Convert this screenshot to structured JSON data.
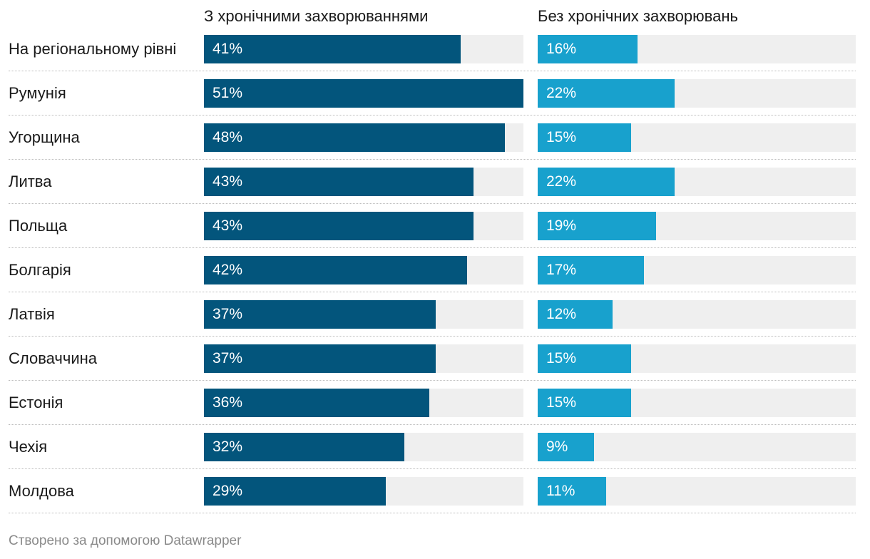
{
  "chart_data": {
    "type": "bar",
    "categories": [
      "На регіональному рівні",
      "Румунія",
      "Угорщина",
      "Литва",
      "Польща",
      "Болгарія",
      "Латвія",
      "Словаччина",
      "Естонія",
      "Чехія",
      "Молдова"
    ],
    "series": [
      {
        "name": "З хронічними захворюваннями",
        "values": [
          41,
          51,
          48,
          43,
          43,
          42,
          37,
          37,
          36,
          32,
          29
        ],
        "labels": [
          "41%",
          "51%",
          "48%",
          "43%",
          "43%",
          "42%",
          "37%",
          "37%",
          "36%",
          "32%",
          "29%"
        ],
        "color": "#03557c"
      },
      {
        "name": "Без хронічних захворювань",
        "values": [
          16,
          22,
          15,
          22,
          19,
          17,
          12,
          15,
          15,
          9,
          11
        ],
        "labels": [
          "16%",
          "22%",
          "15%",
          "22%",
          "19%",
          "17%",
          "12%",
          "15%",
          "15%",
          "9%",
          "11%"
        ],
        "color": "#18a1cd"
      }
    ],
    "xlim": [
      0,
      51
    ],
    "track_color": "#efefef"
  },
  "footer": "Створено за допомогою Datawrapper"
}
